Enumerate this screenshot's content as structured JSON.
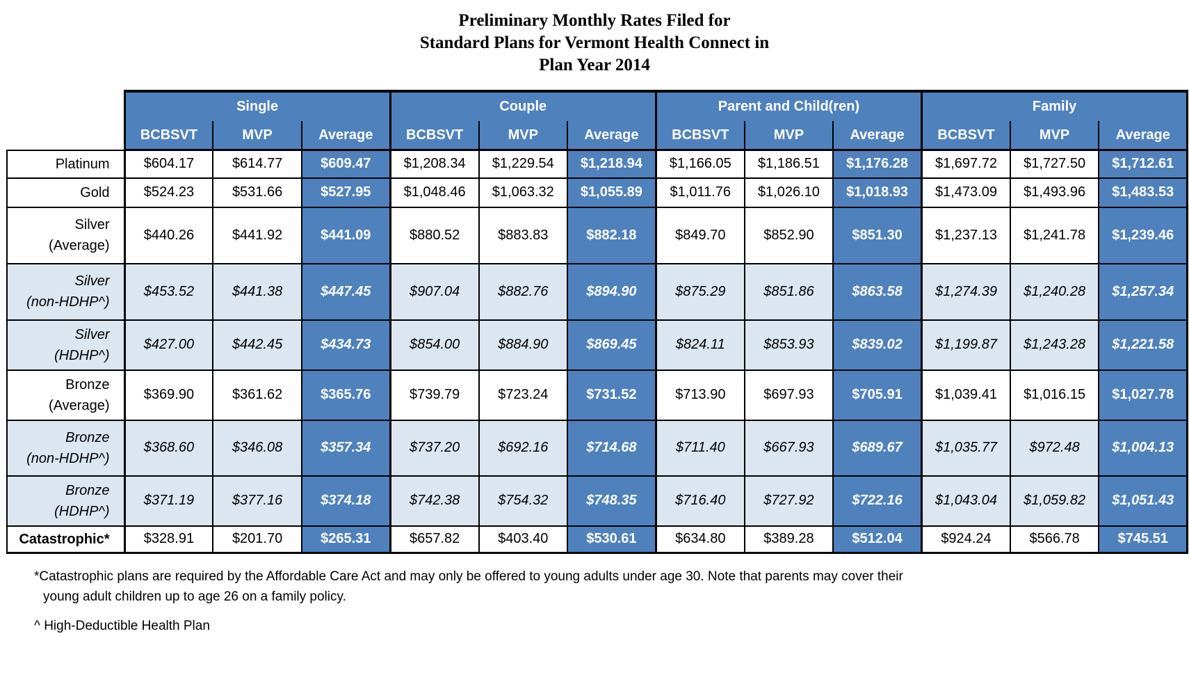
{
  "title": [
    "Preliminary Monthly Rates Filed for",
    "Standard Plans for Vermont Health Connect in",
    "Plan Year 2014"
  ],
  "colors": {
    "header_blue": "#4f81bd",
    "row_shade": "#dce6f1"
  },
  "groups": [
    "Single",
    "Couple",
    "Parent and Child(ren)",
    "Family"
  ],
  "subheaders": [
    "BCBSVT",
    "MVP",
    "Average"
  ],
  "rows": [
    {
      "label": [
        "Platinum"
      ],
      "style": "plain",
      "values": [
        "$604.17",
        "$614.77",
        "$609.47",
        "$1,208.34",
        "$1,229.54",
        "$1,218.94",
        "$1,166.05",
        "$1,186.51",
        "$1,176.28",
        "$1,697.72",
        "$1,727.50",
        "$1,712.61"
      ]
    },
    {
      "label": [
        "Gold"
      ],
      "style": "plain",
      "values": [
        "$524.23",
        "$531.66",
        "$527.95",
        "$1,048.46",
        "$1,063.32",
        "$1,055.89",
        "$1,011.76",
        "$1,026.10",
        "$1,018.93",
        "$1,473.09",
        "$1,493.96",
        "$1,483.53"
      ]
    },
    {
      "label": [
        "Silver",
        "(Average)"
      ],
      "style": "plain",
      "values": [
        "$440.26",
        "$441.92",
        "$441.09",
        "$880.52",
        "$883.83",
        "$882.18",
        "$849.70",
        "$852.90",
        "$851.30",
        "$1,237.13",
        "$1,241.78",
        "$1,239.46"
      ]
    },
    {
      "label": [
        "Silver",
        "(non-HDHP^)"
      ],
      "style": "shade",
      "values": [
        "$453.52",
        "$441.38",
        "$447.45",
        "$907.04",
        "$882.76",
        "$894.90",
        "$875.29",
        "$851.86",
        "$863.58",
        "$1,274.39",
        "$1,240.28",
        "$1,257.34"
      ]
    },
    {
      "label": [
        "Silver",
        "(HDHP^)"
      ],
      "style": "shade",
      "values": [
        "$427.00",
        "$442.45",
        "$434.73",
        "$854.00",
        "$884.90",
        "$869.45",
        "$824.11",
        "$853.93",
        "$839.02",
        "$1,199.87",
        "$1,243.28",
        "$1,221.58"
      ]
    },
    {
      "label": [
        "Bronze",
        "(Average)"
      ],
      "style": "plain",
      "values": [
        "$369.90",
        "$361.62",
        "$365.76",
        "$739.79",
        "$723.24",
        "$731.52",
        "$713.90",
        "$697.93",
        "$705.91",
        "$1,039.41",
        "$1,016.15",
        "$1,027.78"
      ]
    },
    {
      "label": [
        "Bronze",
        "(non-HDHP^)"
      ],
      "style": "shade",
      "values": [
        "$368.60",
        "$346.08",
        "$357.34",
        "$737.20",
        "$692.16",
        "$714.68",
        "$711.40",
        "$667.93",
        "$689.67",
        "$1,035.77",
        "$972.48",
        "$1,004.13"
      ]
    },
    {
      "label": [
        "Bronze",
        "(HDHP^)"
      ],
      "style": "shade",
      "values": [
        "$371.19",
        "$377.16",
        "$374.18",
        "$742.38",
        "$754.32",
        "$748.35",
        "$716.40",
        "$727.92",
        "$722.16",
        "$1,043.04",
        "$1,059.82",
        "$1,051.43"
      ]
    },
    {
      "label": [
        "Catastrophic*"
      ],
      "style": "bold",
      "values": [
        "$328.91",
        "$201.70",
        "$265.31",
        "$657.82",
        "$403.40",
        "$530.61",
        "$634.80",
        "$389.28",
        "$512.04",
        "$924.24",
        "$566.78",
        "$745.51"
      ]
    }
  ],
  "footnotes": {
    "catastrophic": [
      "*Catastrophic plans are required by the Affordable Care Act and may only be offered to young adults under age 30.  Note that parents may cover their",
      "young adult children up to age 26 on a family policy."
    ],
    "hdhp": "^ High-Deductible Health Plan"
  }
}
